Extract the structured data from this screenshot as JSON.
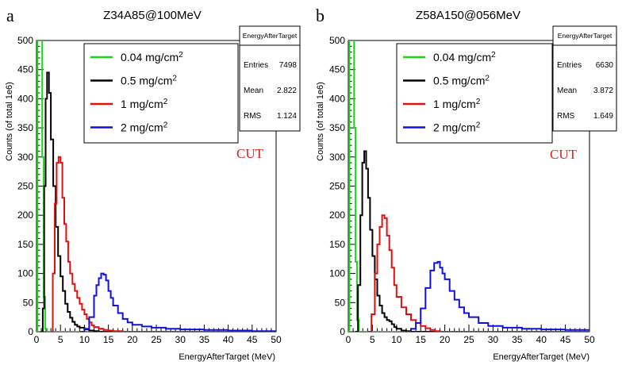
{
  "chart_data": [
    {
      "type": "line",
      "panel_label": "a",
      "title": "Z34A85@100MeV",
      "xlabel": "EnergyAfterTarget (MeV)",
      "ylabel": "Counts (of total 1e6)",
      "xlim": [
        0,
        50
      ],
      "ylim": [
        0,
        500
      ],
      "xticks": [
        0,
        5,
        10,
        15,
        20,
        25,
        30,
        35,
        40,
        45,
        50
      ],
      "yticks": [
        0,
        50,
        100,
        150,
        200,
        250,
        300,
        350,
        400,
        450,
        500
      ],
      "annotation": "CUT",
      "stats": {
        "title": "EnergyAfterTarget",
        "rows": [
          {
            "label": "Entries",
            "value": "7498"
          },
          {
            "label": "Mean",
            "value": "2.822"
          },
          {
            "label": "RMS",
            "value": "1.124"
          }
        ]
      },
      "legend_position": "top-right",
      "series": [
        {
          "name": "green",
          "label_base": "0.04 mg/cm",
          "label_sup": "2",
          "color": "#18d818",
          "points": [
            [
              0.0,
              0
            ],
            [
              0.2,
              500
            ],
            [
              0.5,
              500
            ],
            [
              0.9,
              500
            ],
            [
              1.2,
              300
            ],
            [
              1.5,
              60
            ],
            [
              1.8,
              5
            ],
            [
              2.2,
              0
            ],
            [
              50,
              0
            ]
          ]
        },
        {
          "name": "black",
          "label_base": "0.5 mg/cm",
          "label_sup": "2",
          "color": "#000000",
          "points": [
            [
              1.0,
              0
            ],
            [
              1.3,
              40
            ],
            [
              1.6,
              250
            ],
            [
              1.9,
              400
            ],
            [
              2.2,
              445
            ],
            [
              2.6,
              410
            ],
            [
              3.0,
              330
            ],
            [
              3.5,
              250
            ],
            [
              4.0,
              180
            ],
            [
              4.5,
              130
            ],
            [
              5.0,
              95
            ],
            [
              5.5,
              70
            ],
            [
              6.0,
              48
            ],
            [
              6.5,
              34
            ],
            [
              7.0,
              24
            ],
            [
              7.5,
              17
            ],
            [
              8.0,
              12
            ],
            [
              8.5,
              9
            ],
            [
              9.0,
              7
            ],
            [
              10.0,
              4
            ],
            [
              11.0,
              2
            ],
            [
              12.0,
              1
            ],
            [
              13.0,
              0
            ]
          ]
        },
        {
          "name": "red",
          "label_base": "1 mg/cm",
          "label_sup": "2",
          "color": "#e01010",
          "points": [
            [
              3.0,
              0
            ],
            [
              3.4,
              100
            ],
            [
              3.8,
              220
            ],
            [
              4.2,
              290
            ],
            [
              4.6,
              300
            ],
            [
              5.0,
              290
            ],
            [
              5.4,
              230
            ],
            [
              5.8,
              185
            ],
            [
              6.2,
              155
            ],
            [
              6.6,
              120
            ],
            [
              7.0,
              100
            ],
            [
              7.5,
              82
            ],
            [
              8.0,
              70
            ],
            [
              8.5,
              58
            ],
            [
              9.0,
              48
            ],
            [
              9.5,
              38
            ],
            [
              10.0,
              30
            ],
            [
              10.5,
              22
            ],
            [
              11.0,
              16
            ],
            [
              11.5,
              11
            ],
            [
              12.0,
              8
            ],
            [
              13.0,
              5
            ],
            [
              14.0,
              3
            ],
            [
              15.0,
              2
            ],
            [
              16.0,
              1
            ],
            [
              18.0,
              0
            ]
          ]
        },
        {
          "name": "blue",
          "label_base": "2 mg/cm",
          "label_sup": "2",
          "color": "#1010e0",
          "points": [
            [
              9.0,
              0
            ],
            [
              10.0,
              5
            ],
            [
              11.0,
              25
            ],
            [
              12.0,
              62
            ],
            [
              12.5,
              80
            ],
            [
              13.0,
              92
            ],
            [
              13.5,
              100
            ],
            [
              14.0,
              98
            ],
            [
              14.5,
              88
            ],
            [
              15.0,
              70
            ],
            [
              15.5,
              58
            ],
            [
              16.0,
              45
            ],
            [
              17.0,
              32
            ],
            [
              18.0,
              22
            ],
            [
              19.0,
              16
            ],
            [
              20.0,
              12
            ],
            [
              22.0,
              9
            ],
            [
              24.0,
              7
            ],
            [
              27.0,
              5
            ],
            [
              30.0,
              4
            ],
            [
              35.0,
              3
            ],
            [
              40.0,
              2
            ],
            [
              45.0,
              1
            ],
            [
              50.0,
              1
            ]
          ]
        }
      ]
    },
    {
      "type": "line",
      "panel_label": "b",
      "title": "Z58A150@056MeV",
      "xlabel": "EnergyAfterTarget (MeV)",
      "ylabel": "Counts (of total 1e6)",
      "xlim": [
        0,
        50
      ],
      "ylim": [
        0,
        500
      ],
      "xticks": [
        0,
        5,
        10,
        15,
        20,
        25,
        30,
        35,
        40,
        45,
        50
      ],
      "yticks": [
        0,
        50,
        100,
        150,
        200,
        250,
        300,
        350,
        400,
        450,
        500
      ],
      "annotation": "CUT",
      "stats": {
        "title": "EnergyAfterTarget",
        "rows": [
          {
            "label": "Entries",
            "value": "6630"
          },
          {
            "label": "Mean",
            "value": "3.872"
          },
          {
            "label": "RMS",
            "value": "1.649"
          }
        ]
      },
      "legend_position": "top-right",
      "series": [
        {
          "name": "green",
          "label_base": "0.04 mg/cm",
          "label_sup": "2",
          "color": "#18d818",
          "points": [
            [
              0.0,
              0
            ],
            [
              0.2,
              500
            ],
            [
              0.5,
              500
            ],
            [
              0.9,
              500
            ],
            [
              1.2,
              350
            ],
            [
              1.5,
              120
            ],
            [
              1.8,
              20
            ],
            [
              2.2,
              0
            ],
            [
              50,
              0
            ]
          ]
        },
        {
          "name": "black",
          "label_base": "0.5 mg/cm",
          "label_sup": "2",
          "color": "#000000",
          "points": [
            [
              1.5,
              0
            ],
            [
              2.0,
              80
            ],
            [
              2.5,
              200
            ],
            [
              2.9,
              290
            ],
            [
              3.3,
              310
            ],
            [
              3.7,
              280
            ],
            [
              4.1,
              230
            ],
            [
              4.5,
              175
            ],
            [
              5.0,
              130
            ],
            [
              5.5,
              90
            ],
            [
              6.0,
              62
            ],
            [
              6.5,
              45
            ],
            [
              7.0,
              32
            ],
            [
              7.5,
              25
            ],
            [
              8.0,
              20
            ],
            [
              8.5,
              18
            ],
            [
              9.0,
              13
            ],
            [
              9.5,
              8
            ],
            [
              10.0,
              5
            ],
            [
              11.0,
              2
            ],
            [
              12.0,
              1
            ],
            [
              13.0,
              0
            ]
          ]
        },
        {
          "name": "red",
          "label_base": "1 mg/cm",
          "label_sup": "2",
          "color": "#e01010",
          "points": [
            [
              4.0,
              0
            ],
            [
              4.8,
              30
            ],
            [
              5.5,
              100
            ],
            [
              6.0,
              150
            ],
            [
              6.5,
              180
            ],
            [
              7.0,
              200
            ],
            [
              7.5,
              195
            ],
            [
              8.0,
              165
            ],
            [
              8.5,
              140
            ],
            [
              9.0,
              110
            ],
            [
              9.5,
              80
            ],
            [
              10.0,
              60
            ],
            [
              11.0,
              42
            ],
            [
              12.0,
              30
            ],
            [
              13.0,
              20
            ],
            [
              14.0,
              15
            ],
            [
              15.0,
              10
            ],
            [
              16.0,
              6
            ],
            [
              17.0,
              3
            ],
            [
              18.0,
              1
            ],
            [
              19.0,
              0
            ]
          ]
        },
        {
          "name": "blue",
          "label_base": "2 mg/cm",
          "label_sup": "2",
          "color": "#1010e0",
          "points": [
            [
              12.0,
              0
            ],
            [
              13.0,
              5
            ],
            [
              14.0,
              15
            ],
            [
              15.0,
              40
            ],
            [
              16.0,
              75
            ],
            [
              17.0,
              105
            ],
            [
              17.8,
              118
            ],
            [
              18.5,
              120
            ],
            [
              19.0,
              110
            ],
            [
              19.5,
              100
            ],
            [
              20.0,
              90
            ],
            [
              21.0,
              70
            ],
            [
              22.0,
              55
            ],
            [
              23.0,
              42
            ],
            [
              24.0,
              32
            ],
            [
              25.0,
              25
            ],
            [
              27.0,
              15
            ],
            [
              29.0,
              10
            ],
            [
              32.0,
              7
            ],
            [
              36.0,
              5
            ],
            [
              40.0,
              4
            ],
            [
              45.0,
              3
            ],
            [
              50.0,
              2
            ]
          ]
        }
      ]
    }
  ]
}
